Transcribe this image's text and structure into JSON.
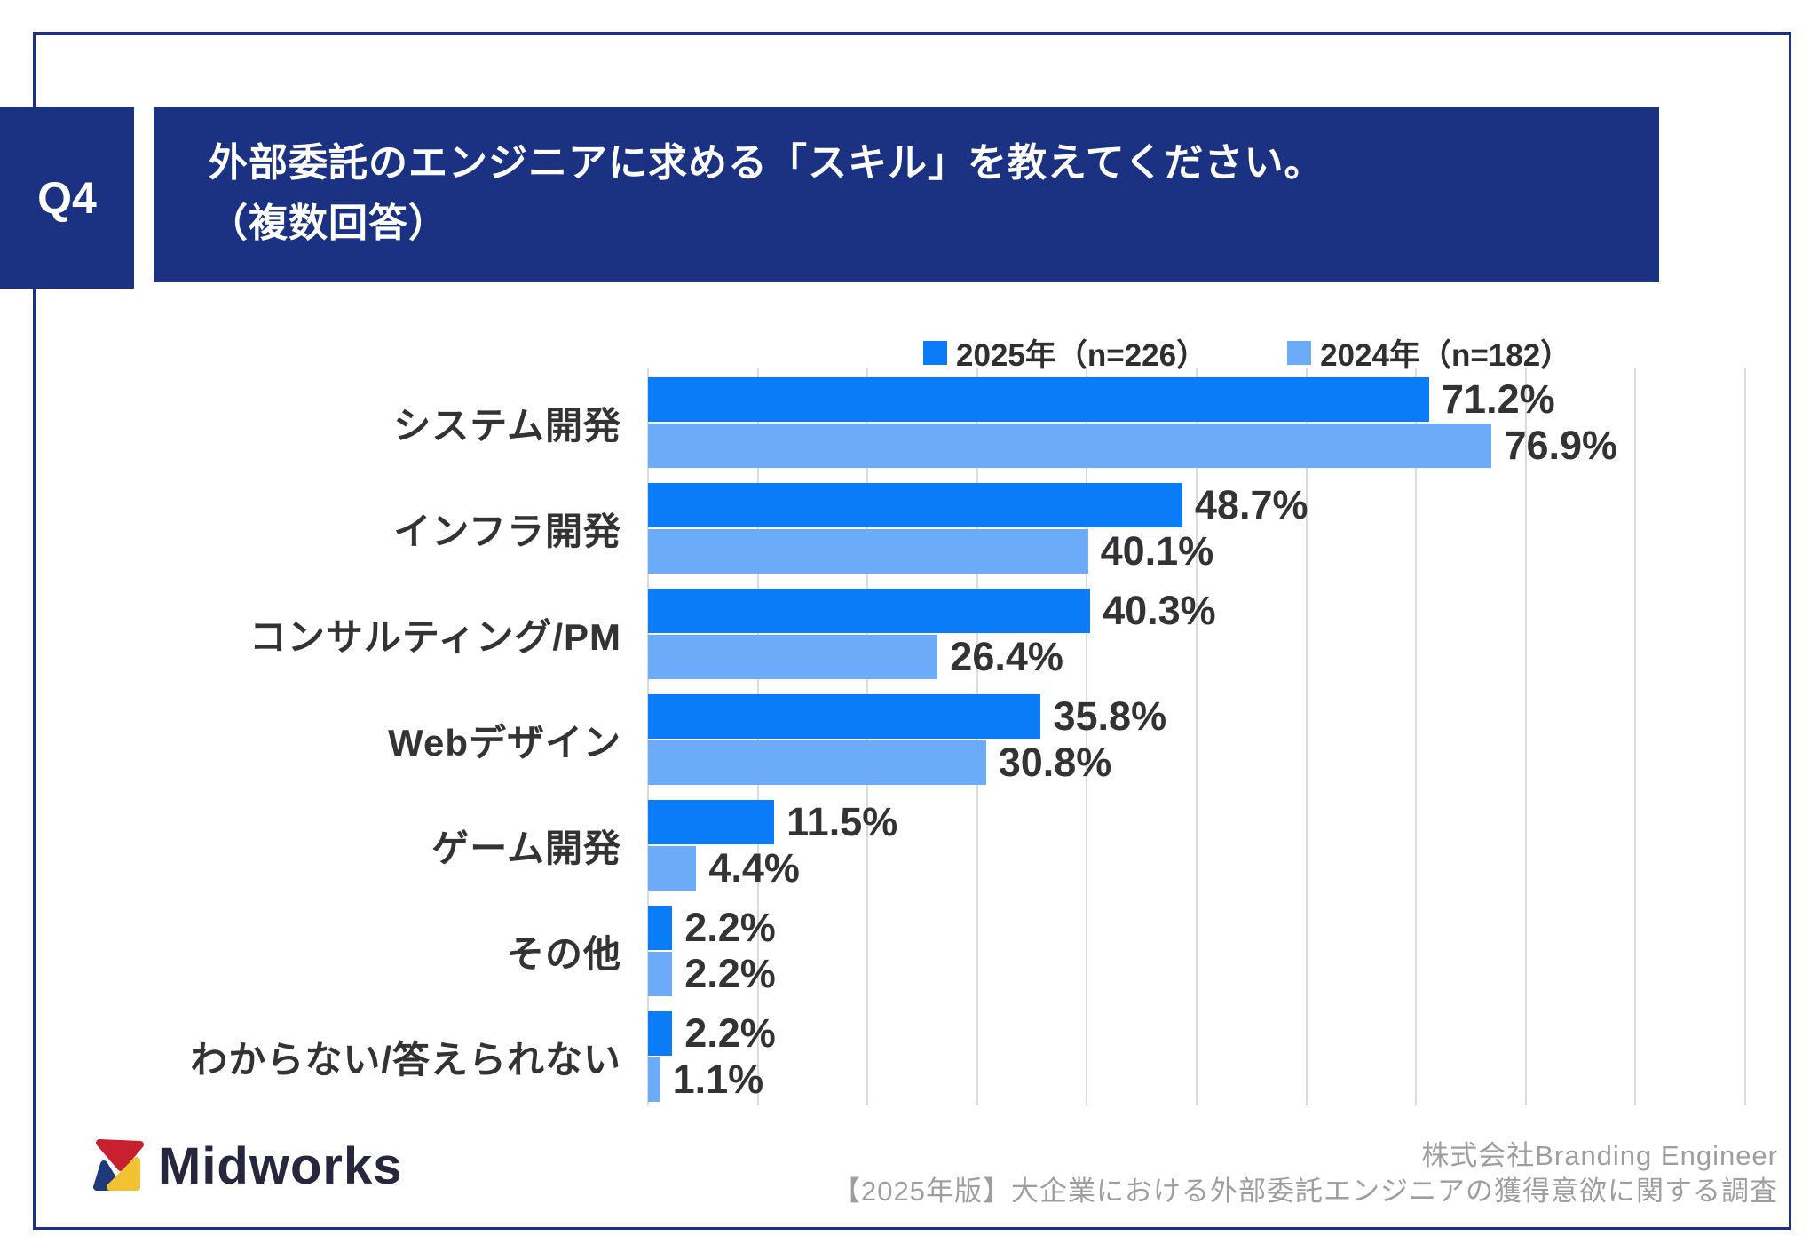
{
  "header": {
    "question_label": "Q4",
    "title_line1": "外部委託のエンジニアに求める「スキル」を教えてください。",
    "title_line2": "（複数回答）"
  },
  "chart_data": {
    "type": "bar",
    "orientation": "horizontal",
    "categories": [
      "システム開発",
      "インフラ開発",
      "コンサルティング/PM",
      "Webデザイン",
      "ゲーム開発",
      "その他",
      "わからない/答えられない"
    ],
    "series": [
      {
        "name": "2025年",
        "legend_label": "2025年（n=226）",
        "n": 226,
        "color": "#0b7cf8",
        "values": [
          71.2,
          48.7,
          40.3,
          35.8,
          11.5,
          2.2,
          2.2
        ]
      },
      {
        "name": "2024年",
        "legend_label": "2024年（n=182）",
        "n": 182,
        "color": "#6babf8",
        "values": [
          76.9,
          40.1,
          26.4,
          30.8,
          4.4,
          2.2,
          1.1
        ]
      }
    ],
    "value_suffix": "%",
    "xlim": [
      0,
      100
    ],
    "gridline_step": 10,
    "grid": true,
    "legend_position": "top-right",
    "value_labels": "outside-end"
  },
  "footer": {
    "logo_text": "Midworks",
    "company": "株式会社Branding Engineer",
    "survey_title": "【2025年版】大企業における外部委託エンジニアの獲得意欲に関する調査"
  },
  "colors": {
    "navy": "#1b3182",
    "bar_2025": "#0b7cf8",
    "bar_2024": "#6babf8",
    "gridline": "#dcdcdc",
    "text_dark": "#333333",
    "source_gray": "#9e9e9e",
    "logo_red": "#c8202f",
    "logo_navy": "#1f3a7a",
    "logo_yellow": "#f2c233"
  }
}
